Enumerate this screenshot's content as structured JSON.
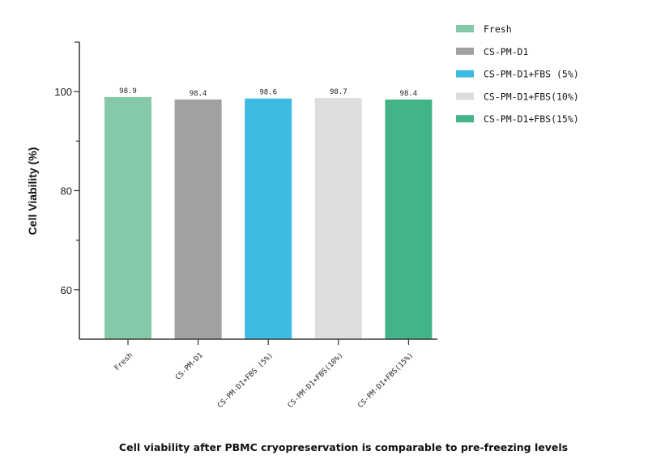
{
  "chart_data": {
    "type": "bar",
    "categories": [
      "Fresh",
      "CS-PM-D1",
      "CS-PM-D1+FBS (5%)",
      "CS-PM-D1+FBS(10%)",
      "CS-PM-D1+FBS(15%)"
    ],
    "values": [
      98.9,
      98.4,
      98.6,
      98.7,
      98.4
    ],
    "data_labels": [
      "98.9",
      "98.4",
      "98.6",
      "98.7",
      "98.4"
    ],
    "colors": [
      "#86c9a8",
      "#a0a1a0",
      "#3dbbe2",
      "#dcdddc",
      "#43b487"
    ],
    "legend": [
      "Fresh",
      "CS-PM-D1",
      "CS-PM-D1+FBS (5%)",
      "CS-PM-D1+FBS(10%)",
      "CS-PM-D1+FBS(15%)"
    ],
    "legend_position": "top-right",
    "ylabel": "Cell Viability (%)",
    "xlabel": "",
    "ylim": [
      50,
      110
    ],
    "yticks": [
      60,
      80,
      100
    ],
    "grid": false,
    "caption": "Cell viability after PBMC cryopreservation is comparable to pre-freezing levels"
  }
}
